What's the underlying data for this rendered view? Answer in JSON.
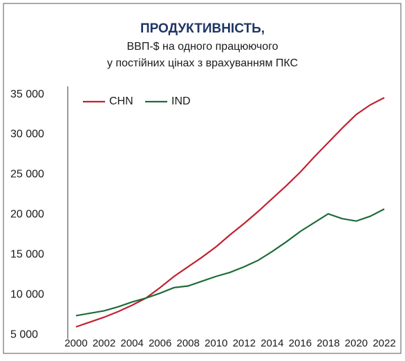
{
  "chart_data": {
    "type": "line",
    "title": "ПРОДУКТИВНІСТЬ,",
    "subtitle": [
      "ВВП-$ на одного працюючого",
      "у постійних цінах з врахуванням ПКС"
    ],
    "x": [
      2000,
      2001,
      2002,
      2003,
      2004,
      2005,
      2006,
      2007,
      2008,
      2009,
      2010,
      2011,
      2012,
      2013,
      2014,
      2015,
      2016,
      2017,
      2018,
      2019,
      2020,
      2021,
      2022
    ],
    "xlim": [
      2000,
      2022
    ],
    "xticks": [
      2000,
      2002,
      2004,
      2006,
      2008,
      2010,
      2012,
      2014,
      2016,
      2018,
      2020,
      2022
    ],
    "ylim": [
      4500,
      36000
    ],
    "yticks": [
      {
        "value": 5000,
        "label": "5 000"
      },
      {
        "value": 10000,
        "label": "10 000"
      },
      {
        "value": 15000,
        "label": "15 000"
      },
      {
        "value": 20000,
        "label": "20 000"
      },
      {
        "value": 25000,
        "label": "25 000"
      },
      {
        "value": 30000,
        "label": "30 000"
      },
      {
        "value": 35000,
        "label": "35 000"
      }
    ],
    "legend": "upper left",
    "series": [
      {
        "name": "CHN",
        "color": "#c0212f",
        "values": [
          6000,
          6600,
          7200,
          7900,
          8700,
          9600,
          10900,
          12300,
          13500,
          14700,
          16000,
          17500,
          18900,
          20400,
          22000,
          23600,
          25300,
          27200,
          29000,
          30800,
          32500,
          33700,
          34600
        ]
      },
      {
        "name": "IND",
        "color": "#1e6b3a",
        "values": [
          7400,
          7700,
          8000,
          8500,
          9100,
          9600,
          10200,
          10900,
          11100,
          11700,
          12300,
          12800,
          13500,
          14300,
          15400,
          16600,
          17900,
          19000,
          20100,
          19500,
          19200,
          19800,
          20700
        ]
      }
    ]
  }
}
